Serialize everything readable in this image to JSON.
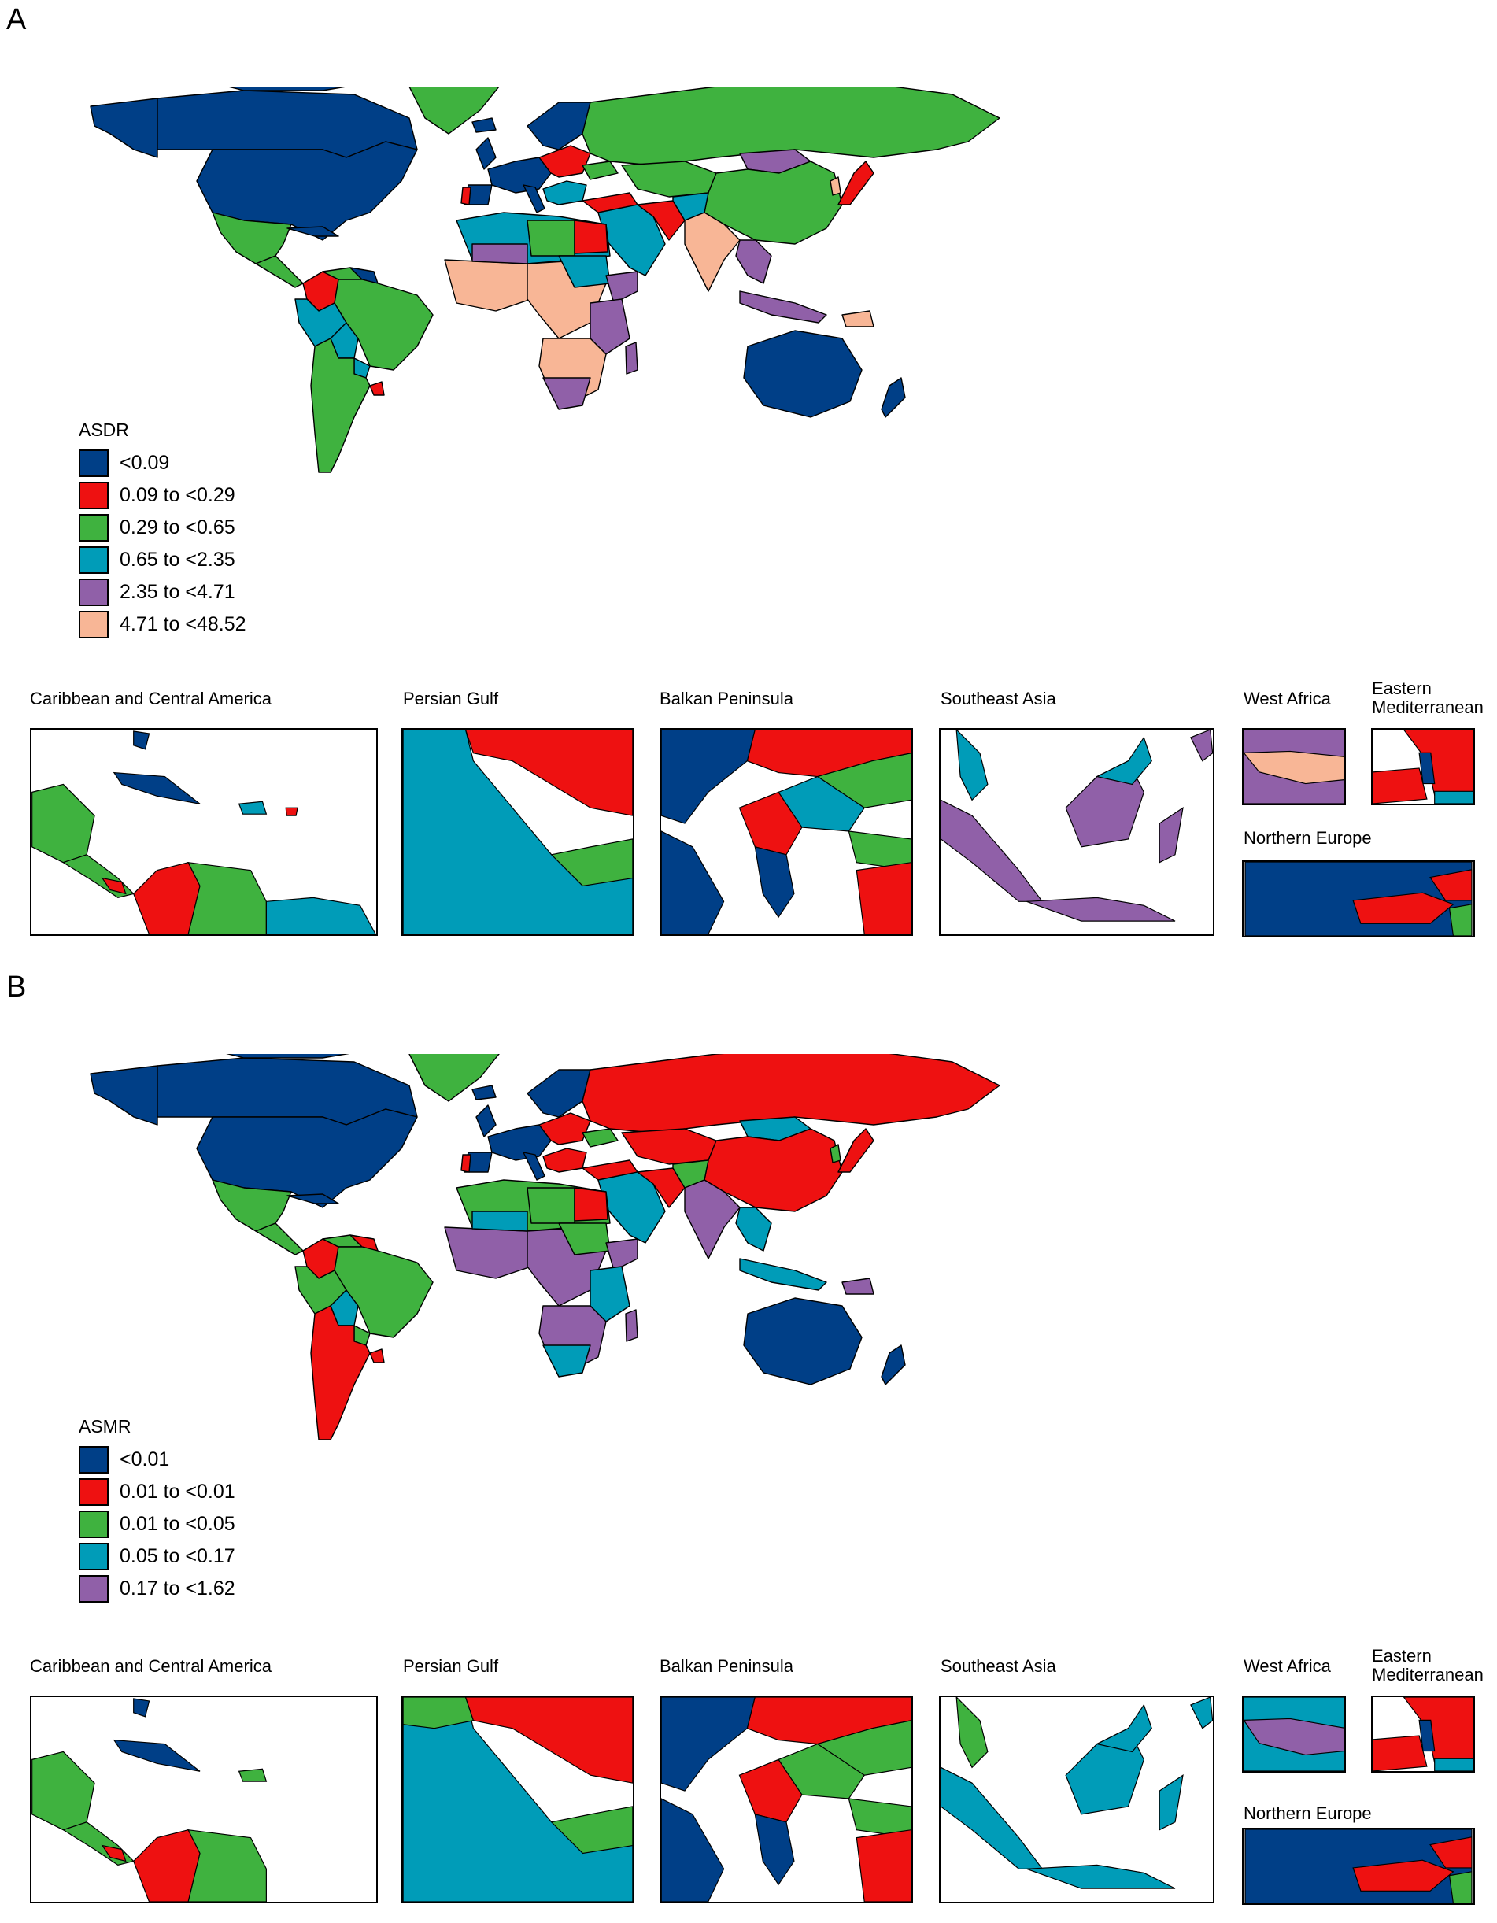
{
  "colors": {
    "blue": "#003F87",
    "red": "#EE1111",
    "green": "#3FB23F",
    "teal": "#009CB8",
    "purple": "#9060A8",
    "salmon": "#F8B696"
  },
  "panels": [
    {
      "letter": "A",
      "legend": {
        "title": "ASDR",
        "items": [
          {
            "label": "<0.09",
            "color": "#003F87"
          },
          {
            "label": "0.09 to <0.29",
            "color": "#EE1111"
          },
          {
            "label": "0.29 to <0.65",
            "color": "#3FB23F"
          },
          {
            "label": "0.65 to <2.35",
            "color": "#009CB8"
          },
          {
            "label": "2.35 to <4.71",
            "color": "#9060A8"
          },
          {
            "label": "4.71 to <48.52",
            "color": "#F8B696"
          }
        ]
      },
      "insets": {
        "caribbean": "Caribbean and Central America",
        "persian_gulf": "Persian Gulf",
        "balkan": "Balkan Peninsula",
        "southeast_asia": "Southeast Asia",
        "west_africa": "West Africa",
        "eastern_med": [
          "Eastern",
          "Mediterranean"
        ],
        "northern_europe": "Northern Europe"
      }
    },
    {
      "letter": "B",
      "legend": {
        "title": "ASMR",
        "items": [
          {
            "label": "<0.01",
            "color": "#003F87"
          },
          {
            "label": "0.01 to <0.01",
            "color": "#EE1111"
          },
          {
            "label": "0.01 to <0.05",
            "color": "#3FB23F"
          },
          {
            "label": "0.05 to <0.17",
            "color": "#009CB8"
          },
          {
            "label": "0.17 to <1.62",
            "color": "#9060A8"
          }
        ]
      },
      "insets": {
        "caribbean": "Caribbean and Central America",
        "persian_gulf": "Persian Gulf",
        "balkan": "Balkan Peninsula",
        "southeast_asia": "Southeast Asia",
        "west_africa": "West Africa",
        "eastern_med": [
          "Eastern",
          "Mediterranean"
        ],
        "northern_europe": "Northern Europe"
      }
    }
  ]
}
